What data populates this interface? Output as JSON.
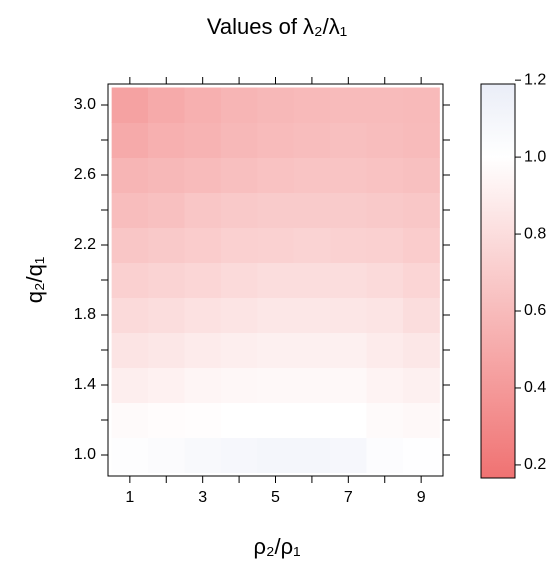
{
  "chart_data": {
    "type": "heatmap",
    "title": "Values of λ₂/λ₁",
    "xlabel": "ρ₂/ρ₁",
    "ylabel": "q₂/q₁",
    "x": [
      1,
      2,
      3,
      4,
      5,
      6,
      7,
      8,
      9
    ],
    "y": [
      1.0,
      1.2,
      1.4,
      1.6,
      1.8,
      2.0,
      2.2,
      2.4,
      2.6,
      2.8,
      3.0
    ],
    "values": [
      [
        1.02,
        1.04,
        1.06,
        1.08,
        1.1,
        1.1,
        1.08,
        1.03,
        1.01
      ],
      [
        0.97,
        0.98,
        0.99,
        1.0,
        1.0,
        1.0,
        1.0,
        0.97,
        0.96
      ],
      [
        0.9,
        0.92,
        0.94,
        0.95,
        0.96,
        0.96,
        0.96,
        0.93,
        0.91
      ],
      [
        0.84,
        0.86,
        0.88,
        0.9,
        0.91,
        0.91,
        0.91,
        0.88,
        0.86
      ],
      [
        0.78,
        0.8,
        0.82,
        0.84,
        0.86,
        0.86,
        0.85,
        0.84,
        0.8
      ],
      [
        0.72,
        0.74,
        0.76,
        0.78,
        0.8,
        0.8,
        0.8,
        0.78,
        0.75
      ],
      [
        0.66,
        0.68,
        0.7,
        0.72,
        0.73,
        0.74,
        0.73,
        0.72,
        0.7
      ],
      [
        0.61,
        0.63,
        0.66,
        0.68,
        0.69,
        0.69,
        0.69,
        0.68,
        0.67
      ],
      [
        0.56,
        0.58,
        0.6,
        0.62,
        0.64,
        0.65,
        0.65,
        0.64,
        0.63
      ],
      [
        0.5,
        0.53,
        0.55,
        0.58,
        0.6,
        0.61,
        0.62,
        0.61,
        0.6
      ],
      [
        0.45,
        0.5,
        0.53,
        0.56,
        0.58,
        0.59,
        0.6,
        0.6,
        0.59
      ]
    ],
    "xlim": [
      0.4,
      9.6
    ],
    "ylim": [
      0.88,
      3.12
    ],
    "xticks": [
      1,
      3,
      5,
      7,
      9
    ],
    "xminorticks": [
      2,
      4,
      6,
      8
    ],
    "yticks": [
      {
        "value": 1.0,
        "label": "1.0"
      },
      {
        "value": 1.4,
        "label": "1.4"
      },
      {
        "value": 1.8,
        "label": "1.8"
      },
      {
        "value": 2.2,
        "label": "2.2"
      },
      {
        "value": 2.6,
        "label": "2.6"
      },
      {
        "value": 3.0,
        "label": "3.0"
      }
    ],
    "yminorticks": [
      1.2,
      1.6,
      2.0,
      2.4,
      2.8
    ],
    "colorbar_lim": [
      0.166,
      1.19
    ],
    "colorbar_ticks": [
      {
        "value": 0.2,
        "label": "0.2"
      },
      {
        "value": 0.4,
        "label": "0.4"
      },
      {
        "value": 0.6,
        "label": "0.6"
      },
      {
        "value": 0.8,
        "label": "0.8"
      },
      {
        "value": 1.0,
        "label": "1.0"
      },
      {
        "value": 1.2,
        "label": "1.2"
      }
    ],
    "colorscale": [
      {
        "value": 0.166,
        "color": "#f07272"
      },
      {
        "value": 1.0,
        "color": "#ffffff"
      },
      {
        "value": 1.19,
        "color": "#eaedf7"
      }
    ]
  }
}
